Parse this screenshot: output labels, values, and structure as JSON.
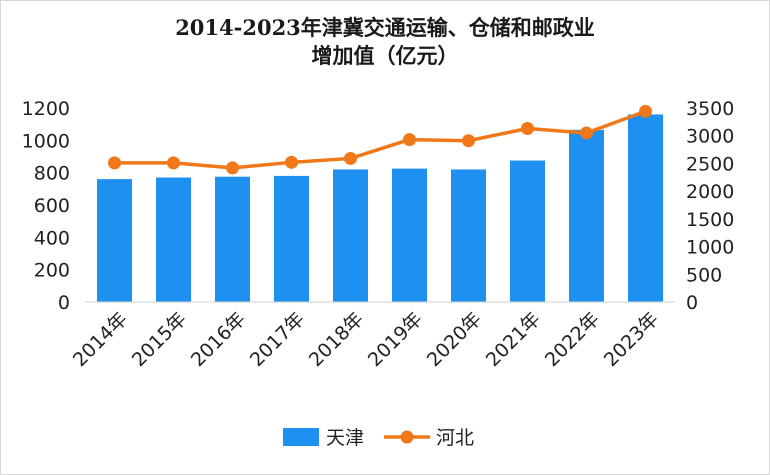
{
  "chart_data": {
    "type": "bar",
    "title_line1": "2014-2023年津冀交通运输、仓储和邮政业",
    "title_line2": "增加值（亿元）",
    "categories": [
      "2014年",
      "2015年",
      "2016年",
      "2017年",
      "2018年",
      "2019年",
      "2020年",
      "2021年",
      "2022年",
      "2023年"
    ],
    "series": [
      {
        "name": "天津",
        "type": "bar",
        "axis": "left",
        "color": "#1e90ef",
        "values": [
          760,
          770,
          775,
          780,
          820,
          825,
          820,
          875,
          1065,
          1160
        ]
      },
      {
        "name": "河北",
        "type": "line",
        "axis": "right",
        "color": "#f07818",
        "values": [
          2510,
          2510,
          2420,
          2520,
          2590,
          2930,
          2910,
          3130,
          3050,
          3440
        ]
      }
    ],
    "y_left": {
      "min": 0,
      "max": 1200,
      "step": 200,
      "ticks": [
        "0",
        "200",
        "400",
        "600",
        "800",
        "1000",
        "1200"
      ]
    },
    "y_right": {
      "min": 0,
      "max": 3500,
      "step": 500,
      "ticks": [
        "0",
        "500",
        "1000",
        "1500",
        "2000",
        "2500",
        "3000",
        "3500"
      ]
    },
    "grid": false,
    "legend_position": "bottom-center"
  }
}
